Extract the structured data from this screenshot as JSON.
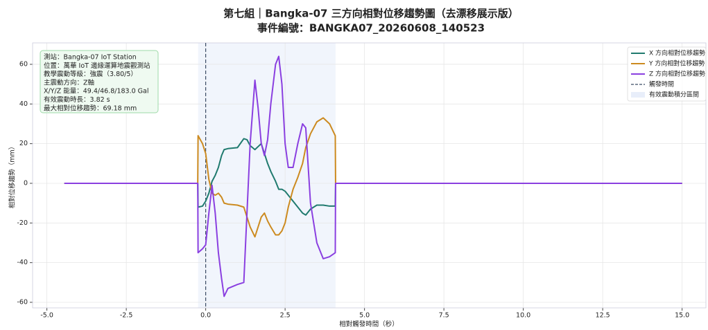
{
  "chart_data": {
    "type": "line",
    "title": "第七組｜Bangka-07 三方向相對位移趨勢圖（去漂移展示版）",
    "subtitle": "事件編號：BANGKA07_20260608_140523",
    "x_label": "相對觸發時間（秒）",
    "y_label": "相對位移趨勢（mm）",
    "annotation_lines": [
      "測站：Bangka-07 IoT Station",
      "位置：萬華 IoT 邊緣運算地震觀測站",
      "教學震動等級：強震（3.80/5）",
      "主震動方向：Z軸",
      "X/Y/Z 能量：49.4/46.8/183.0 Gal",
      "有效震動時長：3.82 s",
      "最大相對位移趨勢：69.18 mm"
    ],
    "x": [
      -4.45,
      -0.25,
      -0.24,
      -0.1,
      0,
      0.1,
      0.2,
      0.3,
      0.4,
      0.5,
      0.58,
      0.7,
      1.0,
      1.2,
      1.3,
      1.4,
      1.55,
      1.65,
      1.75,
      1.85,
      1.95,
      2.05,
      2.2,
      2.3,
      2.4,
      2.5,
      2.6,
      2.75,
      2.9,
      3.05,
      3.15,
      3.3,
      3.5,
      3.7,
      3.9,
      4.08,
      4.09,
      15.0
    ],
    "series": [
      {
        "name": "X 方向相對位移趨勢",
        "color": "#1f7a6e",
        "values": [
          0,
          0,
          -12,
          -11.5,
          -9,
          -5,
          1,
          4,
          8,
          14,
          17,
          17.5,
          18,
          22.5,
          22,
          19,
          17,
          18.5,
          20,
          15,
          10,
          6,
          1,
          -3,
          -3,
          -4,
          -6,
          -9,
          -12,
          -15,
          -16,
          -13,
          -11,
          -11,
          -11.5,
          -11.5,
          0,
          0
        ]
      },
      {
        "name": "Y 方向相對位移趨勢",
        "color": "#cc8a1f",
        "values": [
          0,
          0,
          24,
          20,
          15,
          2,
          -5,
          -6,
          -5,
          -7,
          -10,
          -10.5,
          -11,
          -12,
          -17,
          -22,
          -27,
          -22,
          -17,
          -15,
          -19,
          -22,
          -26,
          -26,
          -24,
          -20,
          -12,
          -3,
          3,
          10,
          18,
          25,
          31,
          33,
          30,
          24,
          0,
          0
        ]
      },
      {
        "name": "Z 方向相對位移趨勢",
        "color": "#8a3fe0",
        "values": [
          0,
          0,
          -35,
          -33,
          -31,
          -15,
          -1,
          -15,
          -35,
          -48,
          -57,
          -53,
          -51,
          -50,
          -15,
          20,
          52,
          38,
          20,
          14,
          22,
          40,
          60,
          64,
          50,
          20,
          8,
          8,
          20,
          30,
          28,
          -10,
          -30,
          -38,
          -37,
          -35,
          0,
          0
        ]
      }
    ],
    "trigger": {
      "name": "觸發時間",
      "x": 0,
      "color": "#3a4a63"
    },
    "span": {
      "name": "有效震動積分區間",
      "x": [
        -0.24,
        4.09
      ],
      "color": "#e8eefa"
    },
    "xlim": [
      -5.45,
      15.75
    ],
    "ylim": [
      -62.8,
      70.8
    ],
    "xticks": [
      {
        "value": -5,
        "label": "-5.0"
      },
      {
        "value": -2.5,
        "label": "-2.5"
      },
      {
        "value": 0,
        "label": "0.0"
      },
      {
        "value": 2.5,
        "label": "2.5"
      },
      {
        "value": 5,
        "label": "5.0"
      },
      {
        "value": 7.5,
        "label": "7.5"
      },
      {
        "value": 10,
        "label": "10.0"
      },
      {
        "value": 12.5,
        "label": "12.5"
      },
      {
        "value": 15,
        "label": "15.0"
      }
    ],
    "yticks": [
      -60,
      -40,
      -20,
      0,
      20,
      40,
      60
    ],
    "grid": true,
    "legend": "upper right"
  }
}
